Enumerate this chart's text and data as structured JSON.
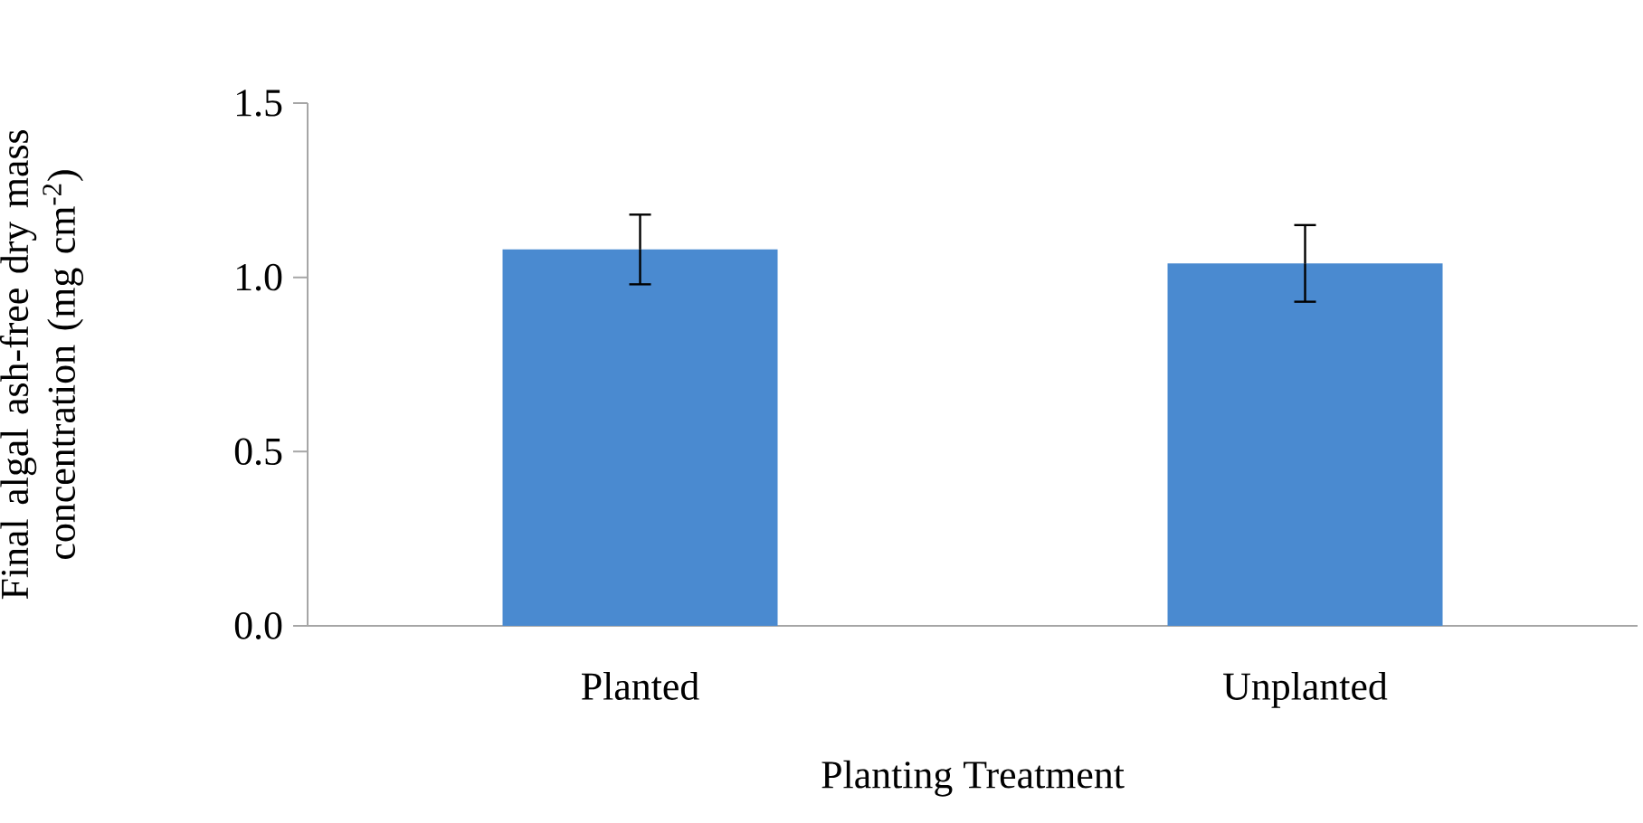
{
  "chart_data": {
    "type": "bar",
    "xlabel": "Planting Treatment",
    "ylabel": "Final algal ash-free dry mass concentration (mg cm$^{-2}$)",
    "categories": [
      "Planted",
      "Unplanted"
    ],
    "values": [
      1.08,
      1.04
    ],
    "errors": [
      0.1,
      0.11
    ],
    "color": "#4a8ad0",
    "ylim": [
      0,
      1.5
    ],
    "yticks": [
      {
        "value": 0,
        "label": "0.0"
      },
      {
        "value": 0.5,
        "label": "0.5"
      },
      {
        "value": 1.0,
        "label": "1.0"
      },
      {
        "value": 1.5,
        "label": "1.5"
      }
    ],
    "grid": false
  }
}
